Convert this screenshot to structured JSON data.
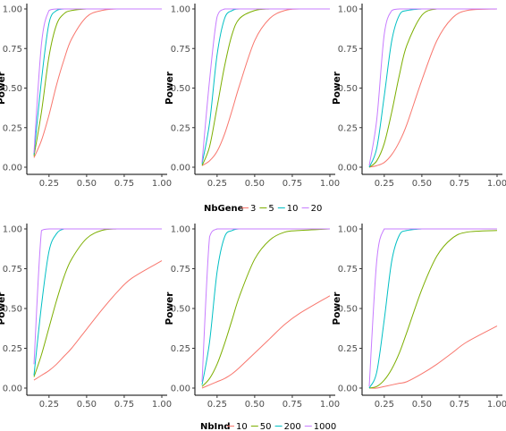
{
  "panels": [
    {
      "id": "top-left",
      "ylabel": "Power",
      "series": [
        {
          "key": "3",
          "fn": "a"
        },
        {
          "key": "5",
          "fn": "b"
        },
        {
          "key": "10",
          "fn": "c"
        },
        {
          "key": "20",
          "fn": "d"
        }
      ]
    },
    {
      "id": "top-middle",
      "ylabel": "Power"
    },
    {
      "id": "top-right",
      "ylabel": "Power"
    },
    {
      "id": "bottom-left",
      "ylabel": "Power"
    },
    {
      "id": "bottom-middle",
      "ylabel": "Power"
    },
    {
      "id": "bottom-right",
      "ylabel": "Power"
    }
  ],
  "legends": {
    "top": {
      "title": "NbGene",
      "labels": [
        "3",
        "5",
        "10",
        "20"
      ]
    },
    "bottom": {
      "title": "NbInd",
      "labels": [
        "10",
        "50",
        "200",
        "1000"
      ]
    }
  },
  "colors": [
    "#F8766D",
    "#7CAE00",
    "#00BFC4",
    "#C77CFF"
  ],
  "chart_data": [
    {
      "type": "line",
      "panel": "top-left",
      "xlim": [
        0.15,
        1.0
      ],
      "ylim": [
        0,
        1
      ],
      "x_ticks": [
        "0.25",
        "0.50",
        "0.75",
        "1.00"
      ],
      "y_ticks": [
        "0.00",
        "0.25",
        "0.50",
        "0.75",
        "1.00"
      ],
      "ylabel": "Power",
      "x": [
        0.15,
        0.2,
        0.25,
        0.3,
        0.35,
        0.4,
        0.5,
        0.6,
        0.7,
        0.8,
        1.0
      ],
      "series": [
        {
          "name": "3",
          "values": [
            0.06,
            0.17,
            0.33,
            0.52,
            0.68,
            0.81,
            0.95,
            0.99,
            1.0,
            1.0,
            1.0
          ]
        },
        {
          "name": "5",
          "values": [
            0.07,
            0.35,
            0.7,
            0.9,
            0.97,
            0.99,
            1.0,
            1.0,
            1.0,
            1.0,
            1.0
          ]
        },
        {
          "name": "10",
          "values": [
            0.08,
            0.55,
            0.91,
            0.99,
            1.0,
            1.0,
            1.0,
            1.0,
            1.0,
            1.0,
            1.0
          ]
        },
        {
          "name": "20",
          "values": [
            0.09,
            0.78,
            0.99,
            1.0,
            1.0,
            1.0,
            1.0,
            1.0,
            1.0,
            1.0,
            1.0
          ]
        }
      ]
    },
    {
      "type": "line",
      "panel": "top-middle",
      "xlim": [
        0.15,
        1.0
      ],
      "ylim": [
        0,
        1
      ],
      "x_ticks": [
        "0.25",
        "0.50",
        "0.75",
        "1.00"
      ],
      "y_ticks": [
        "0.00",
        "0.25",
        "0.50",
        "0.75",
        "1.00"
      ],
      "ylabel": "Power",
      "x": [
        0.15,
        0.2,
        0.25,
        0.3,
        0.35,
        0.4,
        0.5,
        0.6,
        0.7,
        0.8,
        1.0
      ],
      "series": [
        {
          "name": "3",
          "values": [
            0.01,
            0.04,
            0.1,
            0.21,
            0.36,
            0.52,
            0.8,
            0.94,
            0.99,
            1.0,
            1.0
          ]
        },
        {
          "name": "5",
          "values": [
            0.01,
            0.13,
            0.38,
            0.64,
            0.84,
            0.94,
            0.99,
            1.0,
            1.0,
            1.0,
            1.0
          ]
        },
        {
          "name": "10",
          "values": [
            0.02,
            0.28,
            0.71,
            0.94,
            0.99,
            1.0,
            1.0,
            1.0,
            1.0,
            1.0,
            1.0
          ]
        },
        {
          "name": "20",
          "values": [
            0.03,
            0.55,
            0.95,
            1.0,
            1.0,
            1.0,
            1.0,
            1.0,
            1.0,
            1.0,
            1.0
          ]
        }
      ]
    },
    {
      "type": "line",
      "panel": "top-right",
      "xlim": [
        0.15,
        1.0
      ],
      "ylim": [
        0,
        1
      ],
      "x_ticks": [
        "0.25",
        "0.50",
        "0.75",
        "1.00"
      ],
      "y_ticks": [
        "0.00",
        "0.25",
        "0.50",
        "0.75",
        "1.00"
      ],
      "ylabel": "Power",
      "x": [
        0.15,
        0.2,
        0.25,
        0.3,
        0.35,
        0.4,
        0.5,
        0.6,
        0.7,
        0.8,
        1.0
      ],
      "series": [
        {
          "name": "3",
          "values": [
            0.0,
            0.01,
            0.03,
            0.08,
            0.16,
            0.27,
            0.55,
            0.8,
            0.94,
            0.99,
            1.0
          ]
        },
        {
          "name": "5",
          "values": [
            0.0,
            0.04,
            0.15,
            0.35,
            0.58,
            0.77,
            0.96,
            1.0,
            1.0,
            1.0,
            1.0
          ]
        },
        {
          "name": "10",
          "values": [
            0.0,
            0.12,
            0.45,
            0.8,
            0.96,
            0.99,
            1.0,
            1.0,
            1.0,
            1.0,
            1.0
          ]
        },
        {
          "name": "20",
          "values": [
            0.01,
            0.3,
            0.84,
            0.99,
            1.0,
            1.0,
            1.0,
            1.0,
            1.0,
            1.0,
            1.0
          ]
        }
      ]
    },
    {
      "type": "line",
      "panel": "bottom-left",
      "xlim": [
        0.15,
        1.0
      ],
      "ylim": [
        0,
        1
      ],
      "x_ticks": [
        "0.25",
        "0.50",
        "0.75",
        "1.00"
      ],
      "y_ticks": [
        "0.00",
        "0.25",
        "0.50",
        "0.75",
        "1.00"
      ],
      "ylabel": "Power",
      "x": [
        0.15,
        0.2,
        0.25,
        0.3,
        0.35,
        0.4,
        0.5,
        0.6,
        0.7,
        0.8,
        1.0
      ],
      "series": [
        {
          "name": "10",
          "values": [
            0.05,
            0.08,
            0.11,
            0.15,
            0.2,
            0.25,
            0.37,
            0.49,
            0.6,
            0.69,
            0.8
          ]
        },
        {
          "name": "50",
          "values": [
            0.07,
            0.21,
            0.38,
            0.55,
            0.7,
            0.81,
            0.94,
            0.99,
            1.0,
            1.0,
            1.0
          ]
        },
        {
          "name": "200",
          "values": [
            0.08,
            0.52,
            0.86,
            0.97,
            1.0,
            1.0,
            1.0,
            1.0,
            1.0,
            1.0,
            1.0
          ]
        },
        {
          "name": "1000",
          "values": [
            0.15,
            0.99,
            1.0,
            1.0,
            1.0,
            1.0,
            1.0,
            1.0,
            1.0,
            1.0,
            1.0
          ]
        }
      ]
    },
    {
      "type": "line",
      "panel": "bottom-middle",
      "xlim": [
        0.15,
        1.0
      ],
      "ylim": [
        0,
        1
      ],
      "x_ticks": [
        "0.25",
        "0.50",
        "0.75",
        "1.00"
      ],
      "y_ticks": [
        "0.00",
        "0.25",
        "0.50",
        "0.75",
        "1.00"
      ],
      "ylabel": "Power",
      "x": [
        0.15,
        0.2,
        0.25,
        0.3,
        0.35,
        0.4,
        0.5,
        0.6,
        0.7,
        0.8,
        1.0
      ],
      "series": [
        {
          "name": "10",
          "values": [
            0.0,
            0.02,
            0.04,
            0.06,
            0.09,
            0.13,
            0.22,
            0.31,
            0.4,
            0.47,
            0.58
          ]
        },
        {
          "name": "50",
          "values": [
            0.01,
            0.06,
            0.15,
            0.28,
            0.43,
            0.58,
            0.81,
            0.93,
            0.98,
            0.99,
            1.0
          ]
        },
        {
          "name": "200",
          "values": [
            0.02,
            0.29,
            0.73,
            0.95,
            0.99,
            1.0,
            1.0,
            1.0,
            1.0,
            1.0,
            1.0
          ]
        },
        {
          "name": "1000",
          "values": [
            0.04,
            0.95,
            1.0,
            1.0,
            1.0,
            1.0,
            1.0,
            1.0,
            1.0,
            1.0,
            1.0
          ]
        }
      ]
    },
    {
      "type": "line",
      "panel": "bottom-right",
      "xlim": [
        0.15,
        1.0
      ],
      "ylim": [
        0,
        1
      ],
      "x_ticks": [
        "0.25",
        "0.50",
        "0.75",
        "1.00"
      ],
      "y_ticks": [
        "0.00",
        "0.25",
        "0.50",
        "0.75",
        "1.00"
      ],
      "ylabel": "Power",
      "x": [
        0.15,
        0.2,
        0.25,
        0.3,
        0.35,
        0.4,
        0.5,
        0.6,
        0.7,
        0.8,
        1.0
      ],
      "series": [
        {
          "name": "10",
          "values": [
            0.0,
            0.0,
            0.01,
            0.02,
            0.03,
            0.04,
            0.09,
            0.15,
            0.22,
            0.29,
            0.39
          ]
        },
        {
          "name": "50",
          "values": [
            0.0,
            0.01,
            0.05,
            0.12,
            0.22,
            0.35,
            0.62,
            0.83,
            0.94,
            0.98,
            0.99
          ]
        },
        {
          "name": "200",
          "values": [
            0.0,
            0.1,
            0.43,
            0.8,
            0.96,
            0.99,
            1.0,
            1.0,
            1.0,
            1.0,
            1.0
          ]
        },
        {
          "name": "1000",
          "values": [
            0.01,
            0.8,
            1.0,
            1.0,
            1.0,
            1.0,
            1.0,
            1.0,
            1.0,
            1.0,
            1.0
          ]
        }
      ]
    }
  ]
}
